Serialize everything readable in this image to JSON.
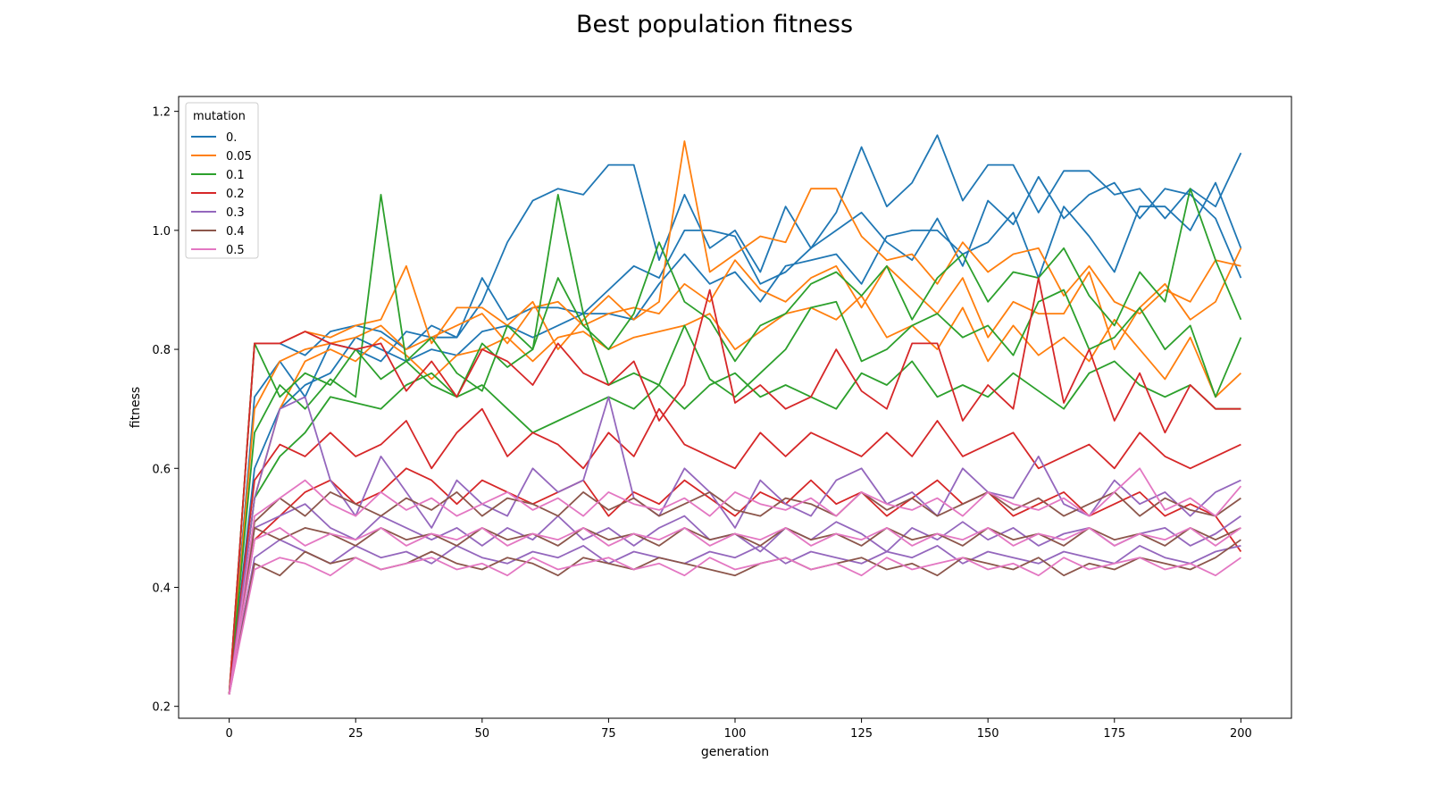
{
  "chart_data": {
    "type": "line",
    "title": "Best population fitness",
    "xlabel": "generation",
    "ylabel": "fitness",
    "xlim": [
      -10,
      210
    ],
    "ylim": [
      0.18,
      1.225
    ],
    "xticks": [
      0,
      25,
      50,
      75,
      100,
      125,
      150,
      175,
      200
    ],
    "yticks": [
      0.2,
      0.4,
      0.6,
      0.8,
      1.0,
      1.2
    ],
    "xtick_labels": [
      "0",
      "25",
      "50",
      "75",
      "100",
      "125",
      "150",
      "175",
      "200"
    ],
    "ytick_labels": [
      "0.2",
      "0.4",
      "0.6",
      "0.8",
      "1.0",
      "1.2"
    ],
    "grid": false,
    "legend": {
      "title": "mutation",
      "placement": "top-left"
    },
    "x_start": 0,
    "x_step": 5,
    "runs_per_series": 3,
    "series": [
      {
        "name": "0.",
        "color": "#1f77b4",
        "runs": [
          [
            0.22,
            0.81,
            0.81,
            0.79,
            0.83,
            0.84,
            0.83,
            0.8,
            0.84,
            0.82,
            0.88,
            0.98,
            1.05,
            1.07,
            1.06,
            1.11,
            1.11,
            0.95,
            1.06,
            0.97,
            1.0,
            0.93,
            1.04,
            0.97,
            1.03,
            1.14,
            1.04,
            1.08,
            1.16,
            1.05,
            1.11,
            1.11,
            1.03,
            1.1,
            1.1,
            1.06,
            1.07,
            1.02,
            1.07,
            1.04,
            1.13
          ],
          [
            0.22,
            0.72,
            0.78,
            0.72,
            0.81,
            0.8,
            0.78,
            0.83,
            0.82,
            0.82,
            0.92,
            0.85,
            0.87,
            0.87,
            0.86,
            0.9,
            0.94,
            0.92,
            1.0,
            1.0,
            0.99,
            0.91,
            0.93,
            0.97,
            1.0,
            1.03,
            0.98,
            0.95,
            1.02,
            0.94,
            1.05,
            1.01,
            1.09,
            1.02,
            1.06,
            1.08,
            1.02,
            1.07,
            1.06,
            1.02,
            0.92
          ],
          [
            0.22,
            0.6,
            0.7,
            0.74,
            0.76,
            0.82,
            0.8,
            0.78,
            0.8,
            0.79,
            0.83,
            0.84,
            0.82,
            0.84,
            0.86,
            0.86,
            0.85,
            0.91,
            0.96,
            0.91,
            0.93,
            0.88,
            0.94,
            0.95,
            0.96,
            0.91,
            0.99,
            1.0,
            1.0,
            0.96,
            0.98,
            1.03,
            0.92,
            1.04,
            0.99,
            0.93,
            1.04,
            1.04,
            1.0,
            1.08,
            0.97
          ]
        ]
      },
      {
        "name": "0.05",
        "color": "#ff7f0e",
        "runs": [
          [
            0.22,
            0.81,
            0.81,
            0.83,
            0.82,
            0.84,
            0.85,
            0.94,
            0.81,
            0.87,
            0.87,
            0.84,
            0.88,
            0.8,
            0.85,
            0.89,
            0.85,
            0.88,
            1.15,
            0.93,
            0.96,
            0.99,
            0.98,
            1.07,
            1.07,
            0.99,
            0.95,
            0.96,
            0.91,
            0.98,
            0.93,
            0.96,
            0.97,
            0.89,
            0.94,
            0.88,
            0.86,
            0.9,
            0.88,
            0.95,
            0.94
          ],
          [
            0.22,
            0.7,
            0.78,
            0.8,
            0.81,
            0.82,
            0.84,
            0.8,
            0.82,
            0.84,
            0.86,
            0.81,
            0.87,
            0.88,
            0.84,
            0.86,
            0.87,
            0.86,
            0.91,
            0.88,
            0.95,
            0.9,
            0.88,
            0.92,
            0.94,
            0.87,
            0.94,
            0.9,
            0.86,
            0.92,
            0.82,
            0.88,
            0.86,
            0.86,
            0.93,
            0.8,
            0.87,
            0.91,
            0.85,
            0.88,
            0.97
          ],
          [
            0.22,
            0.55,
            0.7,
            0.78,
            0.8,
            0.78,
            0.82,
            0.79,
            0.75,
            0.79,
            0.8,
            0.82,
            0.78,
            0.82,
            0.83,
            0.8,
            0.82,
            0.83,
            0.84,
            0.86,
            0.8,
            0.83,
            0.86,
            0.87,
            0.85,
            0.89,
            0.82,
            0.84,
            0.8,
            0.87,
            0.78,
            0.84,
            0.79,
            0.82,
            0.78,
            0.85,
            0.8,
            0.75,
            0.82,
            0.72,
            0.76
          ]
        ]
      },
      {
        "name": "0.1",
        "color": "#2ca02c",
        "runs": [
          [
            0.22,
            0.81,
            0.72,
            0.76,
            0.74,
            0.8,
            0.75,
            0.78,
            0.82,
            0.76,
            0.73,
            0.84,
            0.8,
            0.92,
            0.84,
            0.8,
            0.86,
            0.98,
            0.88,
            0.85,
            0.78,
            0.84,
            0.86,
            0.91,
            0.93,
            0.89,
            0.94,
            0.85,
            0.92,
            0.96,
            0.88,
            0.93,
            0.92,
            0.97,
            0.89,
            0.84,
            0.93,
            0.88,
            1.07,
            0.95,
            0.85
          ],
          [
            0.22,
            0.66,
            0.74,
            0.7,
            0.75,
            0.72,
            1.06,
            0.78,
            0.74,
            0.72,
            0.81,
            0.77,
            0.8,
            1.06,
            0.86,
            0.74,
            0.76,
            0.74,
            0.84,
            0.75,
            0.72,
            0.76,
            0.8,
            0.87,
            0.88,
            0.78,
            0.8,
            0.84,
            0.86,
            0.82,
            0.84,
            0.79,
            0.88,
            0.9,
            0.8,
            0.82,
            0.87,
            0.8,
            0.84,
            0.72,
            0.82
          ],
          [
            0.22,
            0.55,
            0.62,
            0.66,
            0.72,
            0.71,
            0.7,
            0.74,
            0.76,
            0.72,
            0.74,
            0.7,
            0.66,
            0.68,
            0.7,
            0.72,
            0.7,
            0.74,
            0.7,
            0.74,
            0.76,
            0.72,
            0.74,
            0.72,
            0.7,
            0.76,
            0.74,
            0.78,
            0.72,
            0.74,
            0.72,
            0.76,
            0.73,
            0.7,
            0.76,
            0.78,
            0.74,
            0.72,
            0.74,
            0.7,
            0.7
          ]
        ]
      },
      {
        "name": "0.2",
        "color": "#d62728",
        "runs": [
          [
            0.22,
            0.81,
            0.81,
            0.83,
            0.81,
            0.8,
            0.81,
            0.73,
            0.78,
            0.72,
            0.8,
            0.78,
            0.74,
            0.81,
            0.76,
            0.74,
            0.78,
            0.68,
            0.74,
            0.9,
            0.71,
            0.74,
            0.7,
            0.72,
            0.8,
            0.73,
            0.7,
            0.81,
            0.81,
            0.68,
            0.74,
            0.7,
            0.92,
            0.71,
            0.8,
            0.68,
            0.76,
            0.66,
            0.74,
            0.7,
            0.7
          ],
          [
            0.22,
            0.58,
            0.64,
            0.62,
            0.66,
            0.62,
            0.64,
            0.68,
            0.6,
            0.66,
            0.7,
            0.62,
            0.66,
            0.64,
            0.6,
            0.66,
            0.62,
            0.7,
            0.64,
            0.62,
            0.6,
            0.66,
            0.62,
            0.66,
            0.64,
            0.62,
            0.66,
            0.62,
            0.68,
            0.62,
            0.64,
            0.66,
            0.6,
            0.62,
            0.64,
            0.6,
            0.66,
            0.62,
            0.6,
            0.62,
            0.64
          ],
          [
            0.22,
            0.48,
            0.52,
            0.56,
            0.58,
            0.54,
            0.56,
            0.6,
            0.58,
            0.54,
            0.58,
            0.56,
            0.54,
            0.56,
            0.58,
            0.52,
            0.56,
            0.54,
            0.58,
            0.55,
            0.52,
            0.56,
            0.54,
            0.58,
            0.54,
            0.56,
            0.52,
            0.55,
            0.58,
            0.54,
            0.56,
            0.52,
            0.54,
            0.56,
            0.52,
            0.54,
            0.56,
            0.52,
            0.54,
            0.52,
            0.46
          ]
        ]
      },
      {
        "name": "0.3",
        "color": "#9467bd",
        "runs": [
          [
            0.22,
            0.55,
            0.7,
            0.72,
            0.58,
            0.52,
            0.62,
            0.56,
            0.5,
            0.58,
            0.54,
            0.52,
            0.6,
            0.56,
            0.58,
            0.72,
            0.55,
            0.52,
            0.6,
            0.56,
            0.5,
            0.58,
            0.54,
            0.52,
            0.58,
            0.6,
            0.54,
            0.56,
            0.52,
            0.6,
            0.56,
            0.55,
            0.62,
            0.54,
            0.52,
            0.58,
            0.54,
            0.56,
            0.52,
            0.56,
            0.58
          ],
          [
            0.22,
            0.5,
            0.52,
            0.54,
            0.5,
            0.48,
            0.52,
            0.5,
            0.48,
            0.5,
            0.47,
            0.5,
            0.48,
            0.52,
            0.48,
            0.5,
            0.47,
            0.5,
            0.52,
            0.48,
            0.49,
            0.46,
            0.5,
            0.48,
            0.51,
            0.49,
            0.46,
            0.5,
            0.48,
            0.51,
            0.48,
            0.5,
            0.47,
            0.49,
            0.5,
            0.47,
            0.49,
            0.5,
            0.47,
            0.49,
            0.52
          ],
          [
            0.22,
            0.45,
            0.48,
            0.46,
            0.44,
            0.47,
            0.45,
            0.46,
            0.44,
            0.47,
            0.45,
            0.44,
            0.46,
            0.45,
            0.47,
            0.44,
            0.46,
            0.45,
            0.44,
            0.46,
            0.45,
            0.47,
            0.44,
            0.46,
            0.45,
            0.44,
            0.46,
            0.45,
            0.47,
            0.44,
            0.46,
            0.45,
            0.44,
            0.46,
            0.45,
            0.44,
            0.47,
            0.45,
            0.44,
            0.46,
            0.47
          ]
        ]
      },
      {
        "name": "0.4",
        "color": "#8c564b",
        "runs": [
          [
            0.22,
            0.51,
            0.55,
            0.52,
            0.56,
            0.54,
            0.52,
            0.55,
            0.53,
            0.56,
            0.52,
            0.55,
            0.54,
            0.52,
            0.56,
            0.53,
            0.55,
            0.52,
            0.54,
            0.56,
            0.53,
            0.52,
            0.55,
            0.54,
            0.52,
            0.56,
            0.53,
            0.55,
            0.52,
            0.54,
            0.56,
            0.53,
            0.55,
            0.52,
            0.54,
            0.56,
            0.52,
            0.55,
            0.53,
            0.52,
            0.55
          ],
          [
            0.22,
            0.5,
            0.48,
            0.5,
            0.49,
            0.47,
            0.5,
            0.48,
            0.49,
            0.47,
            0.5,
            0.48,
            0.49,
            0.47,
            0.5,
            0.48,
            0.49,
            0.47,
            0.5,
            0.48,
            0.49,
            0.47,
            0.5,
            0.48,
            0.49,
            0.47,
            0.5,
            0.48,
            0.49,
            0.47,
            0.5,
            0.48,
            0.49,
            0.47,
            0.5,
            0.48,
            0.49,
            0.47,
            0.5,
            0.48,
            0.5
          ],
          [
            0.22,
            0.44,
            0.42,
            0.46,
            0.44,
            0.45,
            0.43,
            0.44,
            0.46,
            0.44,
            0.43,
            0.45,
            0.44,
            0.42,
            0.45,
            0.44,
            0.43,
            0.45,
            0.44,
            0.43,
            0.42,
            0.44,
            0.45,
            0.43,
            0.44,
            0.45,
            0.43,
            0.44,
            0.42,
            0.45,
            0.44,
            0.43,
            0.45,
            0.42,
            0.44,
            0.43,
            0.45,
            0.44,
            0.43,
            0.45,
            0.48
          ]
        ]
      },
      {
        "name": "0.5",
        "color": "#e377c2",
        "runs": [
          [
            0.22,
            0.52,
            0.55,
            0.58,
            0.54,
            0.52,
            0.56,
            0.53,
            0.55,
            0.52,
            0.54,
            0.56,
            0.53,
            0.55,
            0.52,
            0.56,
            0.54,
            0.53,
            0.55,
            0.52,
            0.56,
            0.54,
            0.53,
            0.55,
            0.52,
            0.56,
            0.54,
            0.53,
            0.55,
            0.52,
            0.56,
            0.54,
            0.53,
            0.55,
            0.52,
            0.56,
            0.6,
            0.53,
            0.55,
            0.52,
            0.57
          ],
          [
            0.22,
            0.48,
            0.5,
            0.47,
            0.49,
            0.48,
            0.5,
            0.47,
            0.49,
            0.48,
            0.5,
            0.47,
            0.49,
            0.48,
            0.5,
            0.47,
            0.49,
            0.48,
            0.5,
            0.47,
            0.49,
            0.48,
            0.5,
            0.47,
            0.49,
            0.48,
            0.5,
            0.47,
            0.49,
            0.48,
            0.5,
            0.47,
            0.49,
            0.48,
            0.5,
            0.47,
            0.49,
            0.48,
            0.5,
            0.47,
            0.5
          ],
          [
            0.22,
            0.43,
            0.45,
            0.44,
            0.42,
            0.45,
            0.43,
            0.44,
            0.45,
            0.43,
            0.44,
            0.42,
            0.45,
            0.43,
            0.44,
            0.45,
            0.43,
            0.44,
            0.42,
            0.45,
            0.43,
            0.44,
            0.45,
            0.43,
            0.44,
            0.42,
            0.45,
            0.43,
            0.44,
            0.45,
            0.43,
            0.44,
            0.42,
            0.45,
            0.43,
            0.44,
            0.45,
            0.43,
            0.44,
            0.42,
            0.45
          ]
        ]
      }
    ]
  }
}
